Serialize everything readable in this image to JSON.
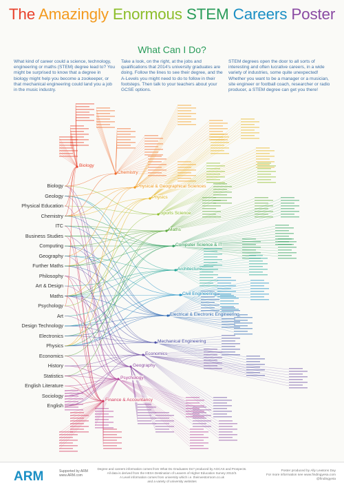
{
  "title_words": [
    {
      "text": "The ",
      "color": "#e8412c"
    },
    {
      "text": "Amazingly ",
      "color": "#f39a1e"
    },
    {
      "text": "Enormous ",
      "color": "#8cbd2a"
    },
    {
      "text": "STEM ",
      "color": "#2a9c5a"
    },
    {
      "text": "Careers ",
      "color": "#1b8fc4"
    },
    {
      "text": "Poster",
      "color": "#8a4aa3"
    }
  ],
  "subtitle": "What Can I Do?",
  "intro": [
    "What kind of career could a science, technology, engineering or maths (STEM) degree lead to? You might be surprised to know that a degree in biology might help you become a zookeeper, or that mechanical engineering could land you a job in the music industry.",
    "Take a look, on the right, at the jobs and qualifications that 2014's university graduates are doing. Follow the lines to see their degree, and the A-Levels you might need to do to follow in their footsteps. Then talk to your teachers about your GCSE options.",
    "STEM degrees open the door to all sorts of interesting and often lucrative careers, in a wide variety of industries, some quite unexpected! Whether you want to be a manager or a musician, site engineer or football coach, researcher or radio producer, a STEM degree can get you there!"
  ],
  "a_levels": [
    "Biology",
    "Geology",
    "Physical Education",
    "Chemistry",
    "ITC",
    "Business Studies",
    "Computing",
    "Geography",
    "Further Maths",
    "Philosophy",
    "Art & Design",
    "Maths",
    "Psychology",
    "Art",
    "Design Technology",
    "Electronics",
    "Physics",
    "Economics",
    "History",
    "Statistics",
    "English Literature",
    "Sociology",
    "English"
  ],
  "degrees": [
    {
      "name": "Biology",
      "color": "#e8412c"
    },
    {
      "name": "Chemistry",
      "color": "#ef6a2c"
    },
    {
      "name": "Physical & Geographical Sciences",
      "color": "#f39a1e"
    },
    {
      "name": "Physics",
      "color": "#e5b31c"
    },
    {
      "name": "Sports Science",
      "color": "#8cbd2a"
    },
    {
      "name": "Maths",
      "color": "#5aa83a"
    },
    {
      "name": "Computer Science & IT",
      "color": "#2a9c5a"
    },
    {
      "name": "Architecture",
      "color": "#1fa596"
    },
    {
      "name": "Civil Engineering",
      "color": "#1b8fc4"
    },
    {
      "name": "Electrical & Electronic Engineering",
      "color": "#2966b3"
    },
    {
      "name": "Mechanical Engineering",
      "color": "#4b4ea6"
    },
    {
      "name": "Economics",
      "color": "#6b4aa3"
    },
    {
      "name": "Geography",
      "color": "#8a4aa3"
    },
    {
      "name": "Psychology",
      "color": "#b0419a"
    },
    {
      "name": "Finance & Accountancy",
      "color": "#d2365d"
    }
  ],
  "footer": {
    "logo": "ARM",
    "support_line1": "Supported by ARM",
    "support_line2": "www.ARM.com",
    "credits_line1": "Degree and careers information comes from What Do Graduates Do? produced by AGCAS and Prospects.",
    "credits_line2": "All data is derived from the HESA Destination of Leavers of Higher Education Survey 2012/3.",
    "credits_line3": "A Level information comes from university which i.e. theinvestorroom.co.uk",
    "credits_line4": "and a variety of university websites",
    "produced_line1": "Poster produced by Ally Lewtons Day",
    "produced_line2": "For more information see www.findingyesa.com @findingyeta"
  }
}
